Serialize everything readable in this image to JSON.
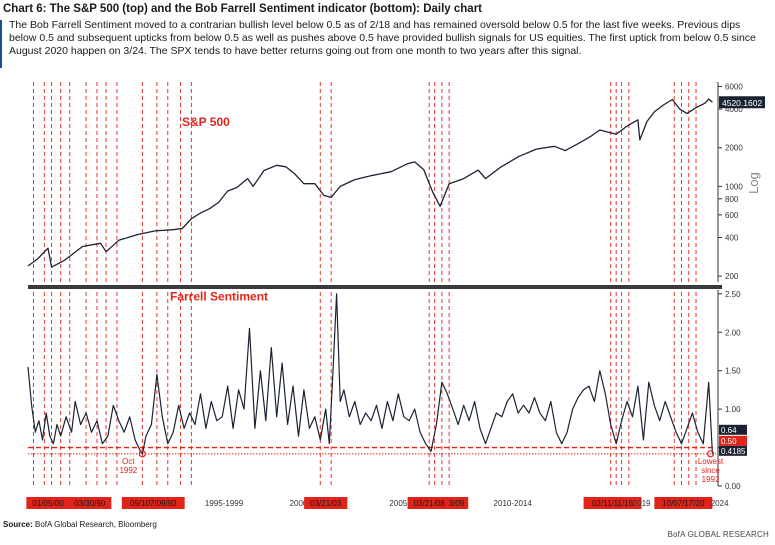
{
  "header": {
    "title": "Chart 6: The S&P 500 (top) and the Bob Farrell Sentiment indicator (bottom): Daily chart",
    "description": "The Bob Farrell Sentiment moved to a contrarian bullish level below 0.5 as of 2/18 and has remained oversold below 0.5 for the last five weeks. Previous dips below 0.5 and subsequent upticks from below 0.5 as well as pushes above 0.5 have provided bullish signals for US equities. The first uptick from below 0.5 since August 2020 happen on 3/24. The SPX tends to have better returns going out from one month to two years after this signal."
  },
  "footer": {
    "source_label": "Source:",
    "source_text": " BofA Global Research, Bloomberg",
    "credit": "BofA GLOBAL RESEARCH"
  },
  "colors": {
    "line": "#1b2333",
    "signal": "#e2231a",
    "divider": "#3a3a3a",
    "label_box": "#e2231a",
    "current_box": "#1b2333"
  },
  "chart_data": [
    {
      "type": "line",
      "panel": "top",
      "title": "S&P 500",
      "scale": "log",
      "ylabel": "Log",
      "yticks": [
        200,
        400,
        600,
        800,
        1000,
        2000,
        4000,
        6000
      ],
      "ylim": [
        180,
        6500
      ],
      "xlim": [
        1986.5,
        2024.4
      ],
      "last_value_label": "4520.1602",
      "series": [
        {
          "x": [
            1986.5,
            1987.0,
            1987.6,
            1987.8,
            1988.5,
            1989.5,
            1990.5,
            1990.8,
            1991.5,
            1992.5,
            1993.5,
            1994.5,
            1995.0,
            1995.5,
            1996.0,
            1996.5,
            1997.0,
            1997.5,
            1998.0,
            1998.6,
            1998.9,
            1999.5,
            2000.2,
            2000.7,
            2001.2,
            2001.7,
            2002.3,
            2002.8,
            2003.2,
            2003.7,
            2004.5,
            2005.5,
            2006.5,
            2007.4,
            2007.8,
            2008.3,
            2008.8,
            2009.2,
            2009.7,
            2010.5,
            2011.3,
            2011.7,
            2012.5,
            2013.5,
            2014.5,
            2015.5,
            2016.1,
            2016.8,
            2017.5,
            2018.0,
            2018.9,
            2019.5,
            2020.1,
            2020.2,
            2020.6,
            2021.0,
            2021.5,
            2022.0,
            2022.4,
            2022.8,
            2023.3,
            2023.8,
            2024.0,
            2024.2
          ],
          "y": [
            240,
            270,
            330,
            235,
            265,
            340,
            360,
            310,
            380,
            420,
            450,
            460,
            470,
            560,
            620,
            670,
            750,
            920,
            980,
            1150,
            1000,
            1330,
            1460,
            1420,
            1250,
            1050,
            1050,
            850,
            820,
            1000,
            1130,
            1220,
            1300,
            1500,
            1550,
            1350,
            900,
            700,
            1050,
            1150,
            1340,
            1150,
            1400,
            1700,
            1950,
            2050,
            1900,
            2150,
            2450,
            2750,
            2550,
            2950,
            3300,
            2300,
            3200,
            3800,
            4300,
            4750,
            4000,
            3700,
            4100,
            4450,
            4780,
            4520
          ]
        }
      ]
    },
    {
      "type": "line",
      "panel": "bottom",
      "title": "Farrell Sentiment",
      "yticks": [
        0.0,
        0.5,
        1.0,
        1.5,
        2.0,
        2.5
      ],
      "yticklabels": [
        "0.00",
        "0.50",
        "1.00",
        "1.50",
        "2.00",
        "2.50"
      ],
      "ylim": [
        0,
        2.55
      ],
      "xlim": [
        1986.5,
        2024.4
      ],
      "reference_line": 0.5,
      "reference_line_2": 0.4185,
      "current_value_labels": [
        "0.64",
        "0.50",
        "0.4185"
      ],
      "annotations": [
        {
          "text_lines": [
            "Oct",
            "1992"
          ],
          "x": 1992.8,
          "y": 0.4185
        },
        {
          "text_lines": [
            "Lowest",
            "since",
            "1992"
          ],
          "x": 2024.1,
          "y": 0.4185
        }
      ],
      "series": [
        {
          "x": [
            1986.5,
            1986.7,
            1986.9,
            1987.1,
            1987.3,
            1987.5,
            1987.7,
            1987.9,
            1988.1,
            1988.3,
            1988.6,
            1988.9,
            1989.1,
            1989.4,
            1989.7,
            1990.0,
            1990.3,
            1990.6,
            1990.9,
            1991.2,
            1991.5,
            1991.8,
            1992.1,
            1992.4,
            1992.7,
            1992.8,
            1993.0,
            1993.3,
            1993.6,
            1993.9,
            1994.2,
            1994.5,
            1994.8,
            1995.1,
            1995.4,
            1995.7,
            1996.0,
            1996.3,
            1996.6,
            1996.9,
            1997.2,
            1997.5,
            1997.8,
            1998.1,
            1998.4,
            1998.7,
            1999.0,
            1999.3,
            1999.6,
            1999.9,
            2000.2,
            2000.5,
            2000.8,
            2001.1,
            2001.4,
            2001.7,
            2002.0,
            2002.3,
            2002.6,
            2002.9,
            2003.1,
            2003.3,
            2003.5,
            2003.7,
            2003.9,
            2004.2,
            2004.5,
            2004.8,
            2005.1,
            2005.4,
            2005.7,
            2006.0,
            2006.3,
            2006.6,
            2006.9,
            2007.2,
            2007.5,
            2007.8,
            2008.1,
            2008.4,
            2008.7,
            2009.0,
            2009.3,
            2009.6,
            2009.9,
            2010.2,
            2010.5,
            2010.8,
            2011.1,
            2011.4,
            2011.7,
            2012.0,
            2012.3,
            2012.6,
            2012.9,
            2013.2,
            2013.5,
            2013.8,
            2014.1,
            2014.4,
            2014.7,
            2015.0,
            2015.3,
            2015.6,
            2015.9,
            2016.2,
            2016.5,
            2016.8,
            2017.1,
            2017.4,
            2017.7,
            2018.0,
            2018.3,
            2018.6,
            2018.9,
            2019.2,
            2019.5,
            2019.8,
            2020.1,
            2020.4,
            2020.7,
            2021.0,
            2021.3,
            2021.6,
            2021.9,
            2022.2,
            2022.5,
            2022.8,
            2023.1,
            2023.4,
            2023.7,
            2024.0,
            2024.2
          ],
          "y": [
            1.55,
            1.05,
            0.7,
            0.85,
            0.6,
            0.95,
            0.65,
            0.55,
            0.8,
            0.65,
            0.9,
            0.7,
            1.1,
            0.8,
            0.95,
            0.7,
            0.85,
            0.55,
            0.65,
            1.05,
            0.85,
            0.7,
            0.9,
            0.6,
            0.45,
            0.42,
            0.65,
            0.8,
            1.45,
            0.9,
            0.55,
            0.7,
            1.05,
            0.75,
            0.95,
            0.8,
            1.2,
            0.75,
            1.1,
            0.85,
            0.9,
            1.3,
            0.75,
            1.25,
            1.0,
            2.05,
            0.75,
            1.5,
            0.85,
            1.8,
            0.9,
            1.6,
            0.8,
            1.3,
            0.65,
            1.25,
            0.75,
            0.9,
            0.6,
            1.0,
            0.55,
            1.5,
            2.5,
            1.1,
            1.25,
            0.9,
            1.1,
            0.8,
            0.95,
            0.85,
            1.05,
            0.75,
            1.1,
            0.85,
            1.2,
            0.9,
            0.85,
            1.0,
            0.7,
            0.55,
            0.45,
            0.8,
            1.35,
            1.2,
            1.0,
            0.8,
            1.05,
            0.85,
            1.1,
            0.75,
            0.55,
            0.75,
            0.95,
            0.9,
            1.1,
            1.2,
            0.95,
            1.05,
            0.95,
            1.15,
            0.95,
            0.85,
            1.1,
            0.7,
            0.55,
            0.7,
            1.0,
            1.15,
            1.25,
            1.3,
            1.1,
            1.5,
            1.2,
            0.8,
            0.55,
            0.85,
            1.1,
            0.9,
            1.3,
            0.6,
            1.35,
            1.05,
            0.85,
            1.1,
            0.9,
            0.7,
            0.55,
            0.75,
            0.95,
            0.7,
            0.55,
            1.35,
            0.42
          ]
        }
      ]
    }
  ],
  "signal_years": [
    1986.8,
    1987.4,
    1987.8,
    1988.3,
    1988.8,
    1989.7,
    1990.3,
    1990.8,
    1991.4,
    1992.8,
    1993.6,
    1994.2,
    1994.9,
    1995.5,
    2002.6,
    2003.2,
    2008.6,
    2008.9,
    2009.3,
    2009.7,
    2018.6,
    2018.9,
    2019.2,
    2019.6,
    2022.1,
    2022.5,
    2022.9,
    2023.3
  ],
  "axis_labels": [
    {
      "text": "01/05/00",
      "x": 1987.6,
      "boxed": true
    },
    {
      "text": "03/30/90",
      "x": 1989.9,
      "boxed": true
    },
    {
      "text": "09/107/09/93",
      "x": 1993.4,
      "boxed": true
    },
    {
      "text": "1995-1999",
      "x": 1997.3,
      "boxed": false
    },
    {
      "text": "2000",
      "x": 2001.4,
      "boxed": false
    },
    {
      "text": "03/21/03",
      "x": 2002.9,
      "boxed": true
    },
    {
      "text": "2005",
      "x": 2006.9,
      "boxed": false
    },
    {
      "text": "03/21/08",
      "x": 2008.6,
      "boxed": true
    },
    {
      "text": "3/09",
      "x": 2010.1,
      "boxed": true
    },
    {
      "text": "2010-2014",
      "x": 2013.2,
      "boxed": false
    },
    {
      "text": "02/11/11/16",
      "x": 2018.7,
      "boxed": true
    },
    {
      "text": "2019",
      "x": 2020.3,
      "boxed": false
    },
    {
      "text": "10/07/17/20",
      "x": 2022.6,
      "boxed": true
    },
    {
      "text": "2024",
      "x": 2024.6,
      "boxed": false
    }
  ]
}
